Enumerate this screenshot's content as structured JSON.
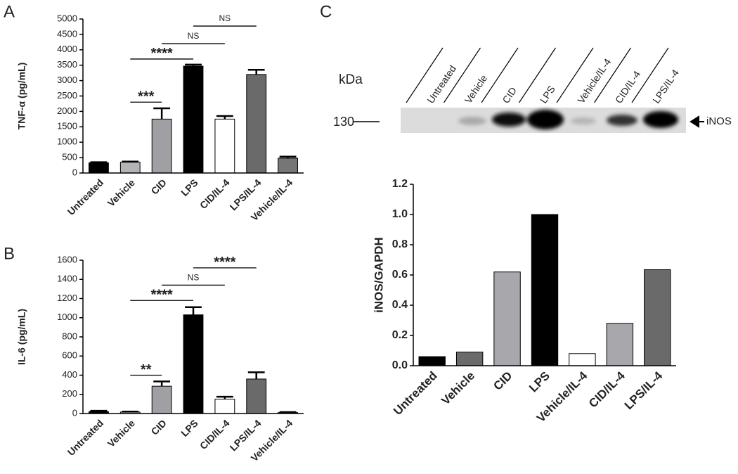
{
  "chart_data": [
    {
      "type": "bar",
      "panel_label": "A",
      "ylabel": "TNF-α (pg/mL)",
      "categories": [
        "Untreated",
        "Vehicle",
        "CID",
        "LPS",
        "CID/IL-4",
        "LPS/IL-4",
        "Vehicle/IL-4"
      ],
      "values": [
        330,
        350,
        1750,
        3470,
        1750,
        3200,
        480
      ],
      "errors": [
        20,
        20,
        350,
        50,
        100,
        150,
        50
      ],
      "colors": [
        "#000000",
        "#b4b4b8",
        "#a0a0a4",
        "#000000",
        "#ffffff",
        "#6a6a6a",
        "#767676"
      ],
      "ylim": [
        0,
        5000
      ],
      "yticks": [
        0,
        500,
        1000,
        1500,
        2000,
        2500,
        3000,
        3500,
        4000,
        4500,
        5000
      ],
      "annotations": [
        {
          "text": "***",
          "start": "Vehicle",
          "end": "CID",
          "y": 2300
        },
        {
          "text": "****",
          "start": "Vehicle",
          "end": "LPS",
          "y": 3700
        },
        {
          "text": "NS",
          "start": "CID",
          "end": "CID/IL-4",
          "y": 4200
        },
        {
          "text": "NS",
          "start": "LPS",
          "end": "LPS/IL-4",
          "y": 4770
        }
      ]
    },
    {
      "type": "bar",
      "panel_label": "B",
      "ylabel": "IL-6 (pg/mL)",
      "categories": [
        "Untreated",
        "Vehicle",
        "CID",
        "LPS",
        "CID/IL-4",
        "LPS/IL-4",
        "Vehicle/IL-4"
      ],
      "values": [
        20,
        15,
        285,
        1030,
        150,
        360,
        10
      ],
      "errors": [
        8,
        5,
        50,
        80,
        25,
        70,
        5
      ],
      "colors": [
        "#000000",
        "#b4b4b8",
        "#a0a0a4",
        "#000000",
        "#ffffff",
        "#6a6a6a",
        "#767676"
      ],
      "ylim": [
        0,
        1600
      ],
      "yticks": [
        0,
        200,
        400,
        600,
        800,
        1000,
        1200,
        1400,
        1600
      ],
      "annotations": [
        {
          "text": "**",
          "start": "Vehicle",
          "end": "CID",
          "y": 400
        },
        {
          "text": "****",
          "start": "Vehicle",
          "end": "LPS",
          "y": 1180
        },
        {
          "text": "NS",
          "start": "CID",
          "end": "CID/IL-4",
          "y": 1340
        },
        {
          "text": "****",
          "start": "LPS",
          "end": "LPS/IL-4",
          "y": 1520
        }
      ]
    },
    {
      "type": "bar",
      "panel_label": "C",
      "ylabel": "iNOS/GAPDH",
      "categories": [
        "Untreated",
        "Vehicle",
        "CID",
        "LPS",
        "Vehicle/IL-4",
        "CID/IL-4",
        "LPS/IL-4"
      ],
      "values": [
        0.06,
        0.09,
        0.62,
        1.0,
        0.08,
        0.28,
        0.635
      ],
      "colors": [
        "#000000",
        "#6a6a6a",
        "#a8a8ac",
        "#000000",
        "#ffffff",
        "#a8a8ac",
        "#6a6a6a"
      ],
      "ylim": [
        0,
        1.2
      ],
      "yticks": [
        {
          "value": 0,
          "label": "0.0"
        },
        0.2,
        0.4,
        0.6,
        0.8,
        {
          "value": 1,
          "label": "1.0"
        },
        1.2
      ],
      "annotations": []
    }
  ],
  "blot": {
    "kda_label": "kDa",
    "marker": "130",
    "band_label": "iNOS",
    "lanes": [
      "Untreated",
      "Vehicle",
      "CID",
      "LPS",
      "Vehicle/IL-4",
      "CID/IL-4",
      "LPS/IL-4"
    ]
  }
}
